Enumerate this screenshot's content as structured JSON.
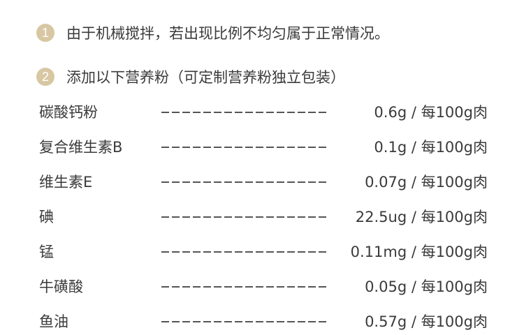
{
  "notes": [
    {
      "number": "1",
      "text": "由于机械搅拌，若出现比例不均匀属于正常情况。"
    },
    {
      "number": "2",
      "text": "添加以下营养粉（可定制营养粉独立包装）"
    }
  ],
  "badge_color": "#d8c7a3",
  "items": [
    {
      "name": "碳酸钙粉",
      "value": "0.6g / 每100g肉"
    },
    {
      "name": "复合维生素B",
      "value": "0.1g / 每100g肉"
    },
    {
      "name": "维生素E",
      "value": "0.07g / 每100g肉"
    },
    {
      "name": "碘",
      "value": "22.5ug / 每100g肉"
    },
    {
      "name": "锰",
      "value": "0.11mg / 每100g肉"
    },
    {
      "name": "牛磺酸",
      "value": "0.05g / 每100g肉"
    },
    {
      "name": "鱼油",
      "value": "0.57g / 每100g肉"
    }
  ]
}
